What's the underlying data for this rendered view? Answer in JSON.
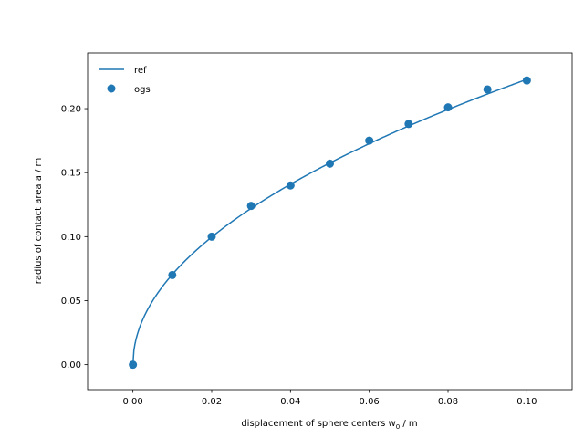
{
  "chart_data": {
    "type": "line",
    "title": "",
    "xlabel": "displacement of sphere centers w",
    "xlabel_sub": "0",
    "xlabel_unit": " / m",
    "ylabel": "radius of contact area a / m",
    "xlim": [
      -0.0115,
      0.1115
    ],
    "ylim": [
      -0.0195,
      0.2435
    ],
    "xticks": [
      0.0,
      0.02,
      0.04,
      0.06,
      0.08,
      0.1
    ],
    "xtick_labels": [
      "0.00",
      "0.02",
      "0.04",
      "0.06",
      "0.08",
      "0.10"
    ],
    "yticks": [
      0.0,
      0.05,
      0.1,
      0.15,
      0.2
    ],
    "ytick_labels": [
      "0.00",
      "0.05",
      "0.10",
      "0.15",
      "0.20"
    ],
    "grid": false,
    "legend_position": "top-left",
    "series": [
      {
        "name": "ref",
        "style": "line",
        "color": "#1f77b4",
        "function": "sqrt",
        "coefficient": 0.7047,
        "x_range": [
          0.0,
          0.1
        ]
      },
      {
        "name": "ogs",
        "style": "scatter",
        "color": "#1f77b4",
        "x": [
          0.0,
          0.01,
          0.02,
          0.03,
          0.04,
          0.05,
          0.06,
          0.07,
          0.08,
          0.09,
          0.1
        ],
        "y": [
          0.0,
          0.07,
          0.1,
          0.124,
          0.14,
          0.157,
          0.175,
          0.188,
          0.201,
          0.215,
          0.222
        ]
      }
    ]
  }
}
